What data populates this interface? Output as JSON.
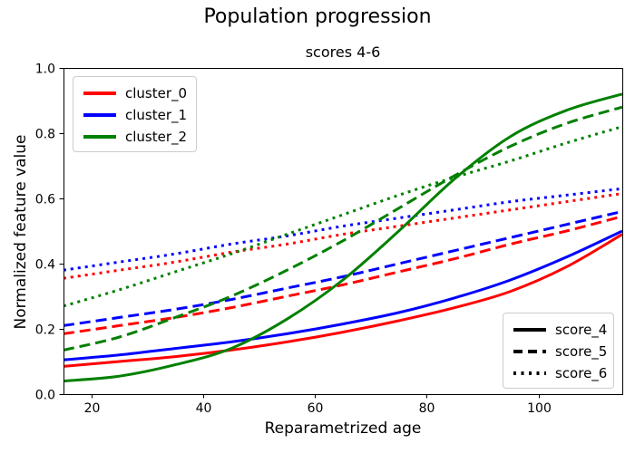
{
  "chart_data": {
    "type": "line",
    "suptitle": "Population progression",
    "title": "scores 4-6",
    "xlabel": "Reparametrized age",
    "ylabel": "Normalized feature value",
    "xlim": [
      15,
      115
    ],
    "ylim": [
      0.0,
      1.0
    ],
    "xticks": [
      20,
      40,
      60,
      80,
      100
    ],
    "yticks": [
      0.0,
      0.2,
      0.4,
      0.6,
      0.8,
      1.0
    ],
    "grid": false,
    "line_width": 3,
    "colors": {
      "cluster_0": "#ff0000",
      "cluster_1": "#0000ff",
      "cluster_2": "#008000"
    },
    "x": [
      15,
      25,
      35,
      45,
      55,
      65,
      75,
      85,
      95,
      105,
      115
    ],
    "series": [
      {
        "name": "cluster_0 score_4",
        "cluster": "cluster_0",
        "score": "score_4",
        "color": "#ff0000",
        "style": "solid",
        "values": [
          0.085,
          0.1,
          0.115,
          0.135,
          0.16,
          0.19,
          0.225,
          0.265,
          0.315,
          0.39,
          0.49
        ]
      },
      {
        "name": "cluster_0 score_5",
        "cluster": "cluster_0",
        "score": "score_5",
        "color": "#ff0000",
        "style": "dashed",
        "values": [
          0.185,
          0.21,
          0.235,
          0.265,
          0.3,
          0.335,
          0.375,
          0.415,
          0.46,
          0.5,
          0.545
        ]
      },
      {
        "name": "cluster_0 score_6",
        "cluster": "cluster_0",
        "score": "score_6",
        "color": "#ff0000",
        "style": "dotted",
        "values": [
          0.355,
          0.38,
          0.405,
          0.435,
          0.46,
          0.49,
          0.515,
          0.54,
          0.565,
          0.59,
          0.615
        ]
      },
      {
        "name": "cluster_1 score_4",
        "cluster": "cluster_1",
        "score": "score_4",
        "color": "#0000ff",
        "style": "solid",
        "values": [
          0.105,
          0.12,
          0.14,
          0.16,
          0.185,
          0.215,
          0.25,
          0.295,
          0.35,
          0.42,
          0.5
        ]
      },
      {
        "name": "cluster_1 score_5",
        "cluster": "cluster_1",
        "score": "score_5",
        "color": "#0000ff",
        "style": "dashed",
        "values": [
          0.21,
          0.235,
          0.26,
          0.29,
          0.325,
          0.36,
          0.4,
          0.44,
          0.48,
          0.52,
          0.56
        ]
      },
      {
        "name": "cluster_1 score_6",
        "cluster": "cluster_1",
        "score": "score_6",
        "color": "#0000ff",
        "style": "dotted",
        "values": [
          0.38,
          0.405,
          0.43,
          0.46,
          0.485,
          0.515,
          0.54,
          0.565,
          0.59,
          0.61,
          0.63
        ]
      },
      {
        "name": "cluster_2 score_4",
        "cluster": "cluster_2",
        "score": "score_4",
        "color": "#008000",
        "style": "solid",
        "values": [
          0.04,
          0.055,
          0.09,
          0.14,
          0.23,
          0.35,
          0.5,
          0.66,
          0.79,
          0.87,
          0.92
        ]
      },
      {
        "name": "cluster_2 score_5",
        "cluster": "cluster_2",
        "score": "score_5",
        "color": "#008000",
        "style": "dashed",
        "values": [
          0.135,
          0.175,
          0.235,
          0.3,
          0.38,
          0.47,
          0.57,
          0.67,
          0.76,
          0.83,
          0.88
        ]
      },
      {
        "name": "cluster_2 score_6",
        "cluster": "cluster_2",
        "score": "score_6",
        "color": "#008000",
        "style": "dotted",
        "values": [
          0.27,
          0.32,
          0.375,
          0.43,
          0.49,
          0.55,
          0.61,
          0.665,
          0.715,
          0.77,
          0.82
        ]
      }
    ],
    "legends": {
      "clusters": {
        "position": "upper-left",
        "entries": [
          {
            "label": "cluster_0",
            "color": "#ff0000"
          },
          {
            "label": "cluster_1",
            "color": "#0000ff"
          },
          {
            "label": "cluster_2",
            "color": "#008000"
          }
        ]
      },
      "scores": {
        "position": "lower-right",
        "entries": [
          {
            "label": "score_4",
            "style": "solid"
          },
          {
            "label": "score_5",
            "style": "dashed"
          },
          {
            "label": "score_6",
            "style": "dotted"
          }
        ]
      }
    }
  }
}
